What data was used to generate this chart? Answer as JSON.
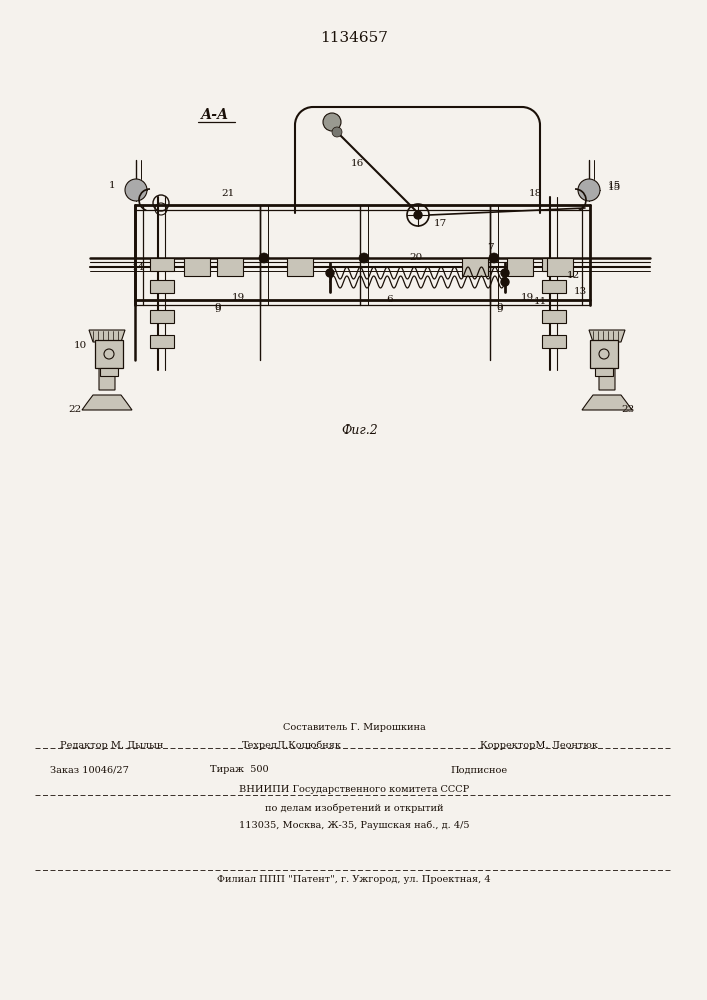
{
  "patent_number": "1134657",
  "figure_label": "Фиг.2",
  "section_label": "А-А",
  "bg_color": "#f5f2ed",
  "line_color": "#1a1008",
  "footer": {
    "line1_center": "Составитель Г. Мирошкина",
    "line2_left": "Редактор М. Дылын",
    "line2_mid": "ТехредЛ.Коцюбняк",
    "line2_right": "КорректорМ. Леонтюк",
    "line3_left": "Заказ 10046/27",
    "line3_mid": "Тираж  500",
    "line3_right": "Подписное",
    "line4": "ВНИИПИ Государственного комитета СССР",
    "line5": "по делам изобретений и открытий",
    "line6": "113035, Москва, Ж-35, Раушская наб., д. 4/5",
    "line7": "Филиал ППП \"Патент\", г. Ужгород, ул. Проектная, 4"
  }
}
